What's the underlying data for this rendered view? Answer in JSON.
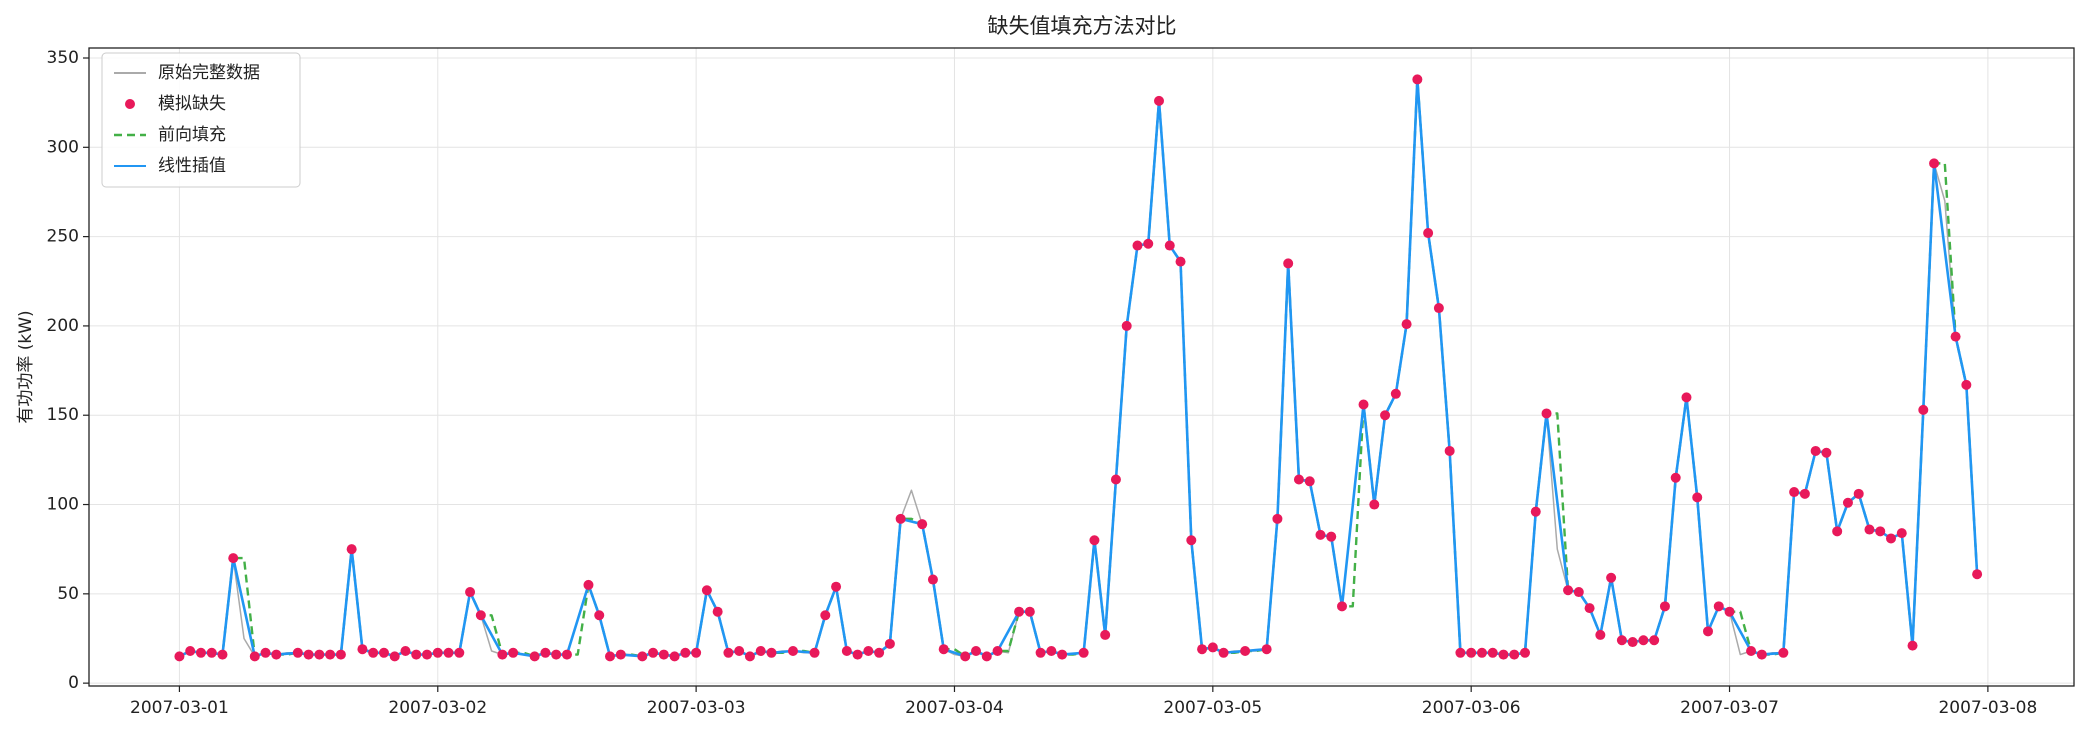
{
  "chart_data": {
    "type": "line",
    "title": "缺失值填充方法对比",
    "y_label": "有功功率 (kW)",
    "x": [
      "2007-03-01 00:00",
      "2007-03-01 01:00",
      "2007-03-01 02:00",
      "2007-03-01 03:00",
      "2007-03-01 04:00",
      "2007-03-01 05:00",
      "2007-03-01 06:00",
      "2007-03-01 07:00",
      "2007-03-01 08:00",
      "2007-03-01 09:00",
      "2007-03-01 10:00",
      "2007-03-01 11:00",
      "2007-03-01 12:00",
      "2007-03-01 13:00",
      "2007-03-01 14:00",
      "2007-03-01 15:00",
      "2007-03-01 16:00",
      "2007-03-01 17:00",
      "2007-03-01 18:00",
      "2007-03-01 19:00",
      "2007-03-01 20:00",
      "2007-03-01 21:00",
      "2007-03-01 22:00",
      "2007-03-01 23:00",
      "2007-03-02 00:00",
      "2007-03-02 01:00",
      "2007-03-02 02:00",
      "2007-03-02 03:00",
      "2007-03-02 04:00",
      "2007-03-02 05:00",
      "2007-03-02 06:00",
      "2007-03-02 07:00",
      "2007-03-02 08:00",
      "2007-03-02 09:00",
      "2007-03-02 10:00",
      "2007-03-02 11:00",
      "2007-03-02 12:00",
      "2007-03-02 13:00",
      "2007-03-02 14:00",
      "2007-03-02 15:00",
      "2007-03-02 16:00",
      "2007-03-02 17:00",
      "2007-03-02 18:00",
      "2007-03-02 19:00",
      "2007-03-02 20:00",
      "2007-03-02 21:00",
      "2007-03-02 22:00",
      "2007-03-02 23:00",
      "2007-03-03 00:00",
      "2007-03-03 01:00",
      "2007-03-03 02:00",
      "2007-03-03 03:00",
      "2007-03-03 04:00",
      "2007-03-03 05:00",
      "2007-03-03 06:00",
      "2007-03-03 07:00",
      "2007-03-03 08:00",
      "2007-03-03 09:00",
      "2007-03-03 10:00",
      "2007-03-03 11:00",
      "2007-03-03 12:00",
      "2007-03-03 13:00",
      "2007-03-03 14:00",
      "2007-03-03 15:00",
      "2007-03-03 16:00",
      "2007-03-03 17:00",
      "2007-03-03 18:00",
      "2007-03-03 19:00",
      "2007-03-03 20:00",
      "2007-03-03 21:00",
      "2007-03-03 22:00",
      "2007-03-03 23:00",
      "2007-03-04 00:00",
      "2007-03-04 01:00",
      "2007-03-04 02:00",
      "2007-03-04 03:00",
      "2007-03-04 04:00",
      "2007-03-04 05:00",
      "2007-03-04 06:00",
      "2007-03-04 07:00",
      "2007-03-04 08:00",
      "2007-03-04 09:00",
      "2007-03-04 10:00",
      "2007-03-04 11:00",
      "2007-03-04 12:00",
      "2007-03-04 13:00",
      "2007-03-04 14:00",
      "2007-03-04 15:00",
      "2007-03-04 16:00",
      "2007-03-04 17:00",
      "2007-03-04 18:00",
      "2007-03-04 19:00",
      "2007-03-04 20:00",
      "2007-03-04 21:00",
      "2007-03-04 22:00",
      "2007-03-04 23:00",
      "2007-03-05 00:00",
      "2007-03-05 01:00",
      "2007-03-05 02:00",
      "2007-03-05 03:00",
      "2007-03-05 04:00",
      "2007-03-05 05:00",
      "2007-03-05 06:00",
      "2007-03-05 07:00",
      "2007-03-05 08:00",
      "2007-03-05 09:00",
      "2007-03-05 10:00",
      "2007-03-05 11:00",
      "2007-03-05 12:00",
      "2007-03-05 13:00",
      "2007-03-05 14:00",
      "2007-03-05 15:00",
      "2007-03-05 16:00",
      "2007-03-05 17:00",
      "2007-03-05 18:00",
      "2007-03-05 19:00",
      "2007-03-05 20:00",
      "2007-03-05 21:00",
      "2007-03-05 22:00",
      "2007-03-05 23:00",
      "2007-03-06 00:00",
      "2007-03-06 01:00",
      "2007-03-06 02:00",
      "2007-03-06 03:00",
      "2007-03-06 04:00",
      "2007-03-06 05:00",
      "2007-03-06 06:00",
      "2007-03-06 07:00",
      "2007-03-06 08:00",
      "2007-03-06 09:00",
      "2007-03-06 10:00",
      "2007-03-06 11:00",
      "2007-03-06 12:00",
      "2007-03-06 13:00",
      "2007-03-06 14:00",
      "2007-03-06 15:00",
      "2007-03-06 16:00",
      "2007-03-06 17:00",
      "2007-03-06 18:00",
      "2007-03-06 19:00",
      "2007-03-06 20:00",
      "2007-03-06 21:00",
      "2007-03-06 22:00",
      "2007-03-06 23:00",
      "2007-03-07 00:00",
      "2007-03-07 01:00",
      "2007-03-07 02:00",
      "2007-03-07 03:00",
      "2007-03-07 04:00",
      "2007-03-07 05:00",
      "2007-03-07 06:00",
      "2007-03-07 07:00",
      "2007-03-07 08:00",
      "2007-03-07 09:00",
      "2007-03-07 10:00",
      "2007-03-07 11:00",
      "2007-03-07 12:00",
      "2007-03-07 13:00",
      "2007-03-07 14:00",
      "2007-03-07 15:00",
      "2007-03-07 16:00",
      "2007-03-07 17:00",
      "2007-03-07 18:00",
      "2007-03-07 19:00",
      "2007-03-07 20:00",
      "2007-03-07 21:00",
      "2007-03-07 22:00",
      "2007-03-07 23:00"
    ],
    "series": [
      {
        "name": "原始完整数据",
        "color": "#aaaaaa",
        "style": "line",
        "values": [
          15,
          18,
          17,
          17,
          16,
          70,
          25,
          15,
          17,
          16,
          17,
          17,
          16,
          16,
          16,
          16,
          75,
          19,
          17,
          17,
          15,
          18,
          16,
          16,
          17,
          17,
          17,
          51,
          38,
          18,
          16,
          17,
          16,
          15,
          17,
          16,
          16,
          35,
          55,
          38,
          15,
          16,
          16,
          15,
          17,
          16,
          15,
          17,
          17,
          52,
          40,
          17,
          18,
          15,
          18,
          17,
          18,
          18,
          17,
          17,
          38,
          54,
          18,
          16,
          18,
          17,
          22,
          92,
          108,
          89,
          58,
          19,
          16,
          15,
          18,
          15,
          18,
          17,
          40,
          40,
          17,
          18,
          16,
          16,
          17,
          80,
          27,
          114,
          200,
          245,
          246,
          326,
          245,
          236,
          80,
          19,
          20,
          17,
          18,
          18,
          18,
          19,
          92,
          235,
          114,
          113,
          83,
          82,
          43,
          100,
          156,
          100,
          150,
          162,
          201,
          338,
          252,
          210,
          130,
          17,
          17,
          17,
          17,
          16,
          16,
          17,
          96,
          151,
          75,
          52,
          51,
          42,
          27,
          59,
          24,
          23,
          24,
          24,
          43,
          115,
          160,
          104,
          29,
          43,
          40,
          16,
          18,
          16,
          17,
          17,
          107,
          106,
          130,
          129,
          85,
          101,
          106,
          86,
          85,
          81,
          84,
          21,
          153,
          291,
          270,
          194,
          167,
          61
        ]
      },
      {
        "name": "模拟缺失",
        "color": "#e8195a",
        "style": "marker",
        "values": [
          15,
          18,
          17,
          17,
          16,
          70,
          null,
          15,
          17,
          16,
          null,
          17,
          16,
          16,
          16,
          16,
          75,
          19,
          17,
          17,
          15,
          18,
          16,
          16,
          17,
          17,
          17,
          51,
          38,
          null,
          16,
          17,
          null,
          15,
          17,
          16,
          16,
          null,
          55,
          38,
          15,
          16,
          null,
          15,
          17,
          16,
          15,
          17,
          17,
          52,
          40,
          17,
          18,
          15,
          18,
          17,
          null,
          18,
          null,
          17,
          38,
          54,
          18,
          16,
          18,
          17,
          22,
          92,
          null,
          89,
          58,
          19,
          null,
          15,
          18,
          15,
          18,
          null,
          40,
          40,
          17,
          18,
          16,
          null,
          17,
          80,
          27,
          114,
          200,
          245,
          246,
          326,
          245,
          236,
          80,
          19,
          20,
          17,
          null,
          18,
          null,
          19,
          92,
          235,
          114,
          113,
          83,
          82,
          43,
          null,
          156,
          100,
          150,
          162,
          201,
          338,
          252,
          210,
          130,
          17,
          17,
          17,
          17,
          16,
          16,
          17,
          96,
          151,
          null,
          52,
          51,
          42,
          27,
          59,
          24,
          23,
          24,
          24,
          43,
          115,
          160,
          104,
          29,
          43,
          40,
          null,
          18,
          16,
          null,
          17,
          107,
          106,
          130,
          129,
          85,
          101,
          106,
          86,
          85,
          81,
          84,
          21,
          153,
          291,
          null,
          194,
          167,
          61
        ]
      },
      {
        "name": "前向填充",
        "color": "#43b047",
        "style": "dashed",
        "values": [
          15,
          18,
          17,
          17,
          16,
          70,
          70,
          15,
          17,
          16,
          16,
          17,
          16,
          16,
          16,
          16,
          75,
          19,
          17,
          17,
          15,
          18,
          16,
          16,
          17,
          17,
          17,
          51,
          38,
          38,
          16,
          17,
          17,
          15,
          17,
          16,
          16,
          16,
          55,
          38,
          15,
          16,
          16,
          15,
          17,
          16,
          15,
          17,
          17,
          52,
          40,
          17,
          18,
          15,
          18,
          17,
          17,
          18,
          18,
          17,
          38,
          54,
          18,
          16,
          18,
          17,
          22,
          92,
          92,
          89,
          58,
          19,
          19,
          15,
          18,
          15,
          18,
          18,
          40,
          40,
          17,
          18,
          16,
          16,
          17,
          80,
          27,
          114,
          200,
          245,
          246,
          326,
          245,
          236,
          80,
          19,
          20,
          17,
          17,
          18,
          18,
          19,
          92,
          235,
          114,
          113,
          83,
          82,
          43,
          43,
          156,
          100,
          150,
          162,
          201,
          338,
          252,
          210,
          130,
          17,
          17,
          17,
          17,
          16,
          16,
          17,
          96,
          151,
          151,
          52,
          51,
          42,
          27,
          59,
          24,
          23,
          24,
          24,
          43,
          115,
          160,
          104,
          29,
          43,
          40,
          40,
          18,
          16,
          16,
          17,
          107,
          106,
          130,
          129,
          85,
          101,
          106,
          86,
          85,
          81,
          84,
          21,
          153,
          291,
          291,
          194,
          167,
          61
        ]
      },
      {
        "name": "线性插值",
        "color": "#2196f3",
        "style": "line",
        "values": [
          15,
          18,
          17,
          17,
          16,
          70,
          42.5,
          15,
          17,
          16,
          16.5,
          17,
          16,
          16,
          16,
          16,
          75,
          19,
          17,
          17,
          15,
          18,
          16,
          16,
          17,
          17,
          17,
          51,
          38,
          27,
          16,
          17,
          16,
          15,
          17,
          16,
          16,
          35.5,
          55,
          38,
          15,
          16,
          15.5,
          15,
          17,
          16,
          15,
          17,
          17,
          52,
          40,
          17,
          18,
          15,
          18,
          17,
          17.5,
          18,
          17.5,
          17,
          38,
          54,
          18,
          16,
          18,
          17,
          22,
          92,
          90.5,
          89,
          58,
          19,
          17,
          15,
          18,
          15,
          18,
          29,
          40,
          40,
          17,
          18,
          16,
          16.5,
          17,
          80,
          27,
          114,
          200,
          245,
          246,
          326,
          245,
          236,
          80,
          19,
          20,
          17,
          17.5,
          18,
          18.5,
          19,
          92,
          235,
          114,
          113,
          83,
          82,
          43,
          99.5,
          156,
          100,
          150,
          162,
          201,
          338,
          252,
          210,
          130,
          17,
          17,
          17,
          17,
          16,
          16,
          17,
          96,
          151,
          101.5,
          52,
          51,
          42,
          27,
          59,
          24,
          23,
          24,
          24,
          43,
          115,
          160,
          104,
          29,
          43,
          40,
          29,
          18,
          16,
          16.5,
          17,
          107,
          106,
          130,
          129,
          85,
          101,
          106,
          86,
          85,
          81,
          84,
          21,
          153,
          291,
          242.5,
          194,
          167,
          61
        ]
      }
    ],
    "xlim": [
      "2007-02-28 15:36",
      "2007-03-08 08:00"
    ],
    "xticks": [
      "2007-03-01",
      "2007-03-02",
      "2007-03-03",
      "2007-03-04",
      "2007-03-05",
      "2007-03-06",
      "2007-03-07",
      "2007-03-08"
    ],
    "ylim": [
      -1.6,
      355.6
    ],
    "yticks": [
      0,
      50,
      100,
      150,
      200,
      250,
      300,
      350
    ],
    "grid": true,
    "legend": "upper left"
  }
}
